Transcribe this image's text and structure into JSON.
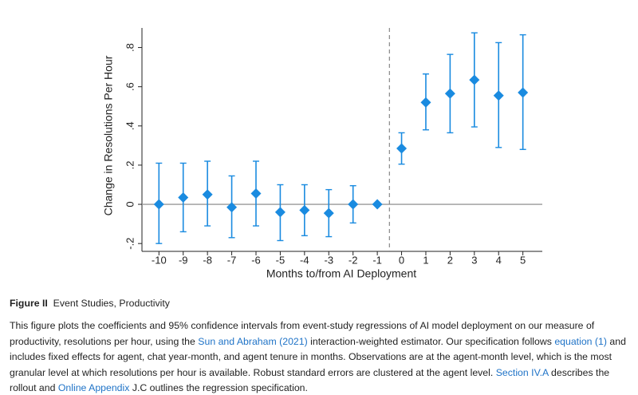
{
  "chart_data": {
    "type": "errorbar",
    "ylabel": "Change in Resolutions Per Hour",
    "xlabel": "Months to/from AI Deployment",
    "x": [
      -10,
      -9,
      -8,
      -7,
      -6,
      -5,
      -4,
      -3,
      -2,
      -1,
      0,
      1,
      2,
      3,
      4,
      5
    ],
    "values": [
      0.0,
      0.035,
      0.05,
      -0.015,
      0.055,
      -0.04,
      -0.03,
      -0.045,
      0.0,
      0.0,
      0.285,
      0.52,
      0.565,
      0.635,
      0.555,
      0.57
    ],
    "ci_lower": [
      -0.2,
      -0.14,
      -0.11,
      -0.17,
      -0.11,
      -0.185,
      -0.16,
      -0.165,
      -0.095,
      null,
      0.205,
      0.38,
      0.365,
      0.395,
      0.29,
      0.28
    ],
    "ci_upper": [
      0.21,
      0.21,
      0.22,
      0.145,
      0.22,
      0.1,
      0.1,
      0.075,
      0.095,
      null,
      0.365,
      0.665,
      0.765,
      0.875,
      0.825,
      0.865
    ],
    "color": "#1a8be0",
    "xlim": [
      -10.7,
      5.8
    ],
    "xticks": [
      -10,
      -9,
      -8,
      -7,
      -6,
      -5,
      -4,
      -3,
      -2,
      -1,
      0,
      1,
      2,
      3,
      4,
      5
    ],
    "ylim": [
      -0.24,
      0.9
    ],
    "yticks": [
      {
        "value": -0.2,
        "label": "-.2"
      },
      0,
      {
        "value": 0.2,
        "label": ".2"
      },
      {
        "value": 0.4,
        "label": ".4"
      },
      {
        "value": 0.6,
        "label": ".6"
      },
      {
        "value": 0.8,
        "label": ".8"
      }
    ],
    "hline": 0,
    "vline": -0.5
  },
  "caption": {
    "label": "Figure II",
    "title": "Event Studies, Productivity",
    "body": [
      {
        "text": "This figure plots the coefficients and 95% confidence intervals from event-study regressions of AI model deployment on our measure of productivity, resolutions per hour, using the "
      },
      {
        "text": "Sun and Abraham (2021)",
        "link": true
      },
      {
        "text": " interaction-weighted estimator. Our specification follows "
      },
      {
        "text": "equation (1)",
        "link": true
      },
      {
        "text": " and includes fixed effects for agent, chat year-month, and agent tenure in months. Observations are at the agent-month level, which is the most granular level at which resolutions per hour is available. Robust standard errors are clustered at the agent level. "
      },
      {
        "text": "Section IV.A",
        "link": true
      },
      {
        "text": " describes the rollout and "
      },
      {
        "text": "Online Appendix",
        "link": true
      },
      {
        "text": " J.C outlines the regression specification."
      }
    ]
  }
}
